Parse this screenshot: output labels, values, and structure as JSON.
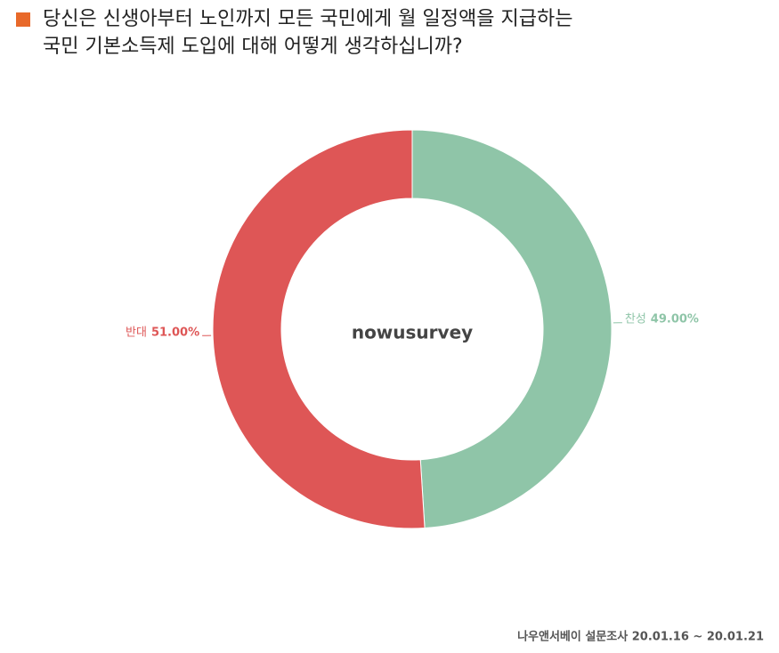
{
  "chart_data": {
    "type": "donut",
    "title": [
      "당신은 신생아부터 노인까지 모든 국민에게 월 일정액을 지급하는",
      "국민 기본소득제 도입에 대해 어떻게 생각하십니까?"
    ],
    "center_label": "nowusurvey",
    "categories": [
      "찬성",
      "반대"
    ],
    "values": [
      49,
      51
    ],
    "value_labels": [
      "49.00%",
      "51.00%"
    ],
    "colors": [
      "#8fc5a8",
      "#de5656"
    ],
    "title_marker_color": "#e8692a",
    "footer": "나우앤서베이 설문조사 20.01.16 ~ 20.01.21"
  }
}
